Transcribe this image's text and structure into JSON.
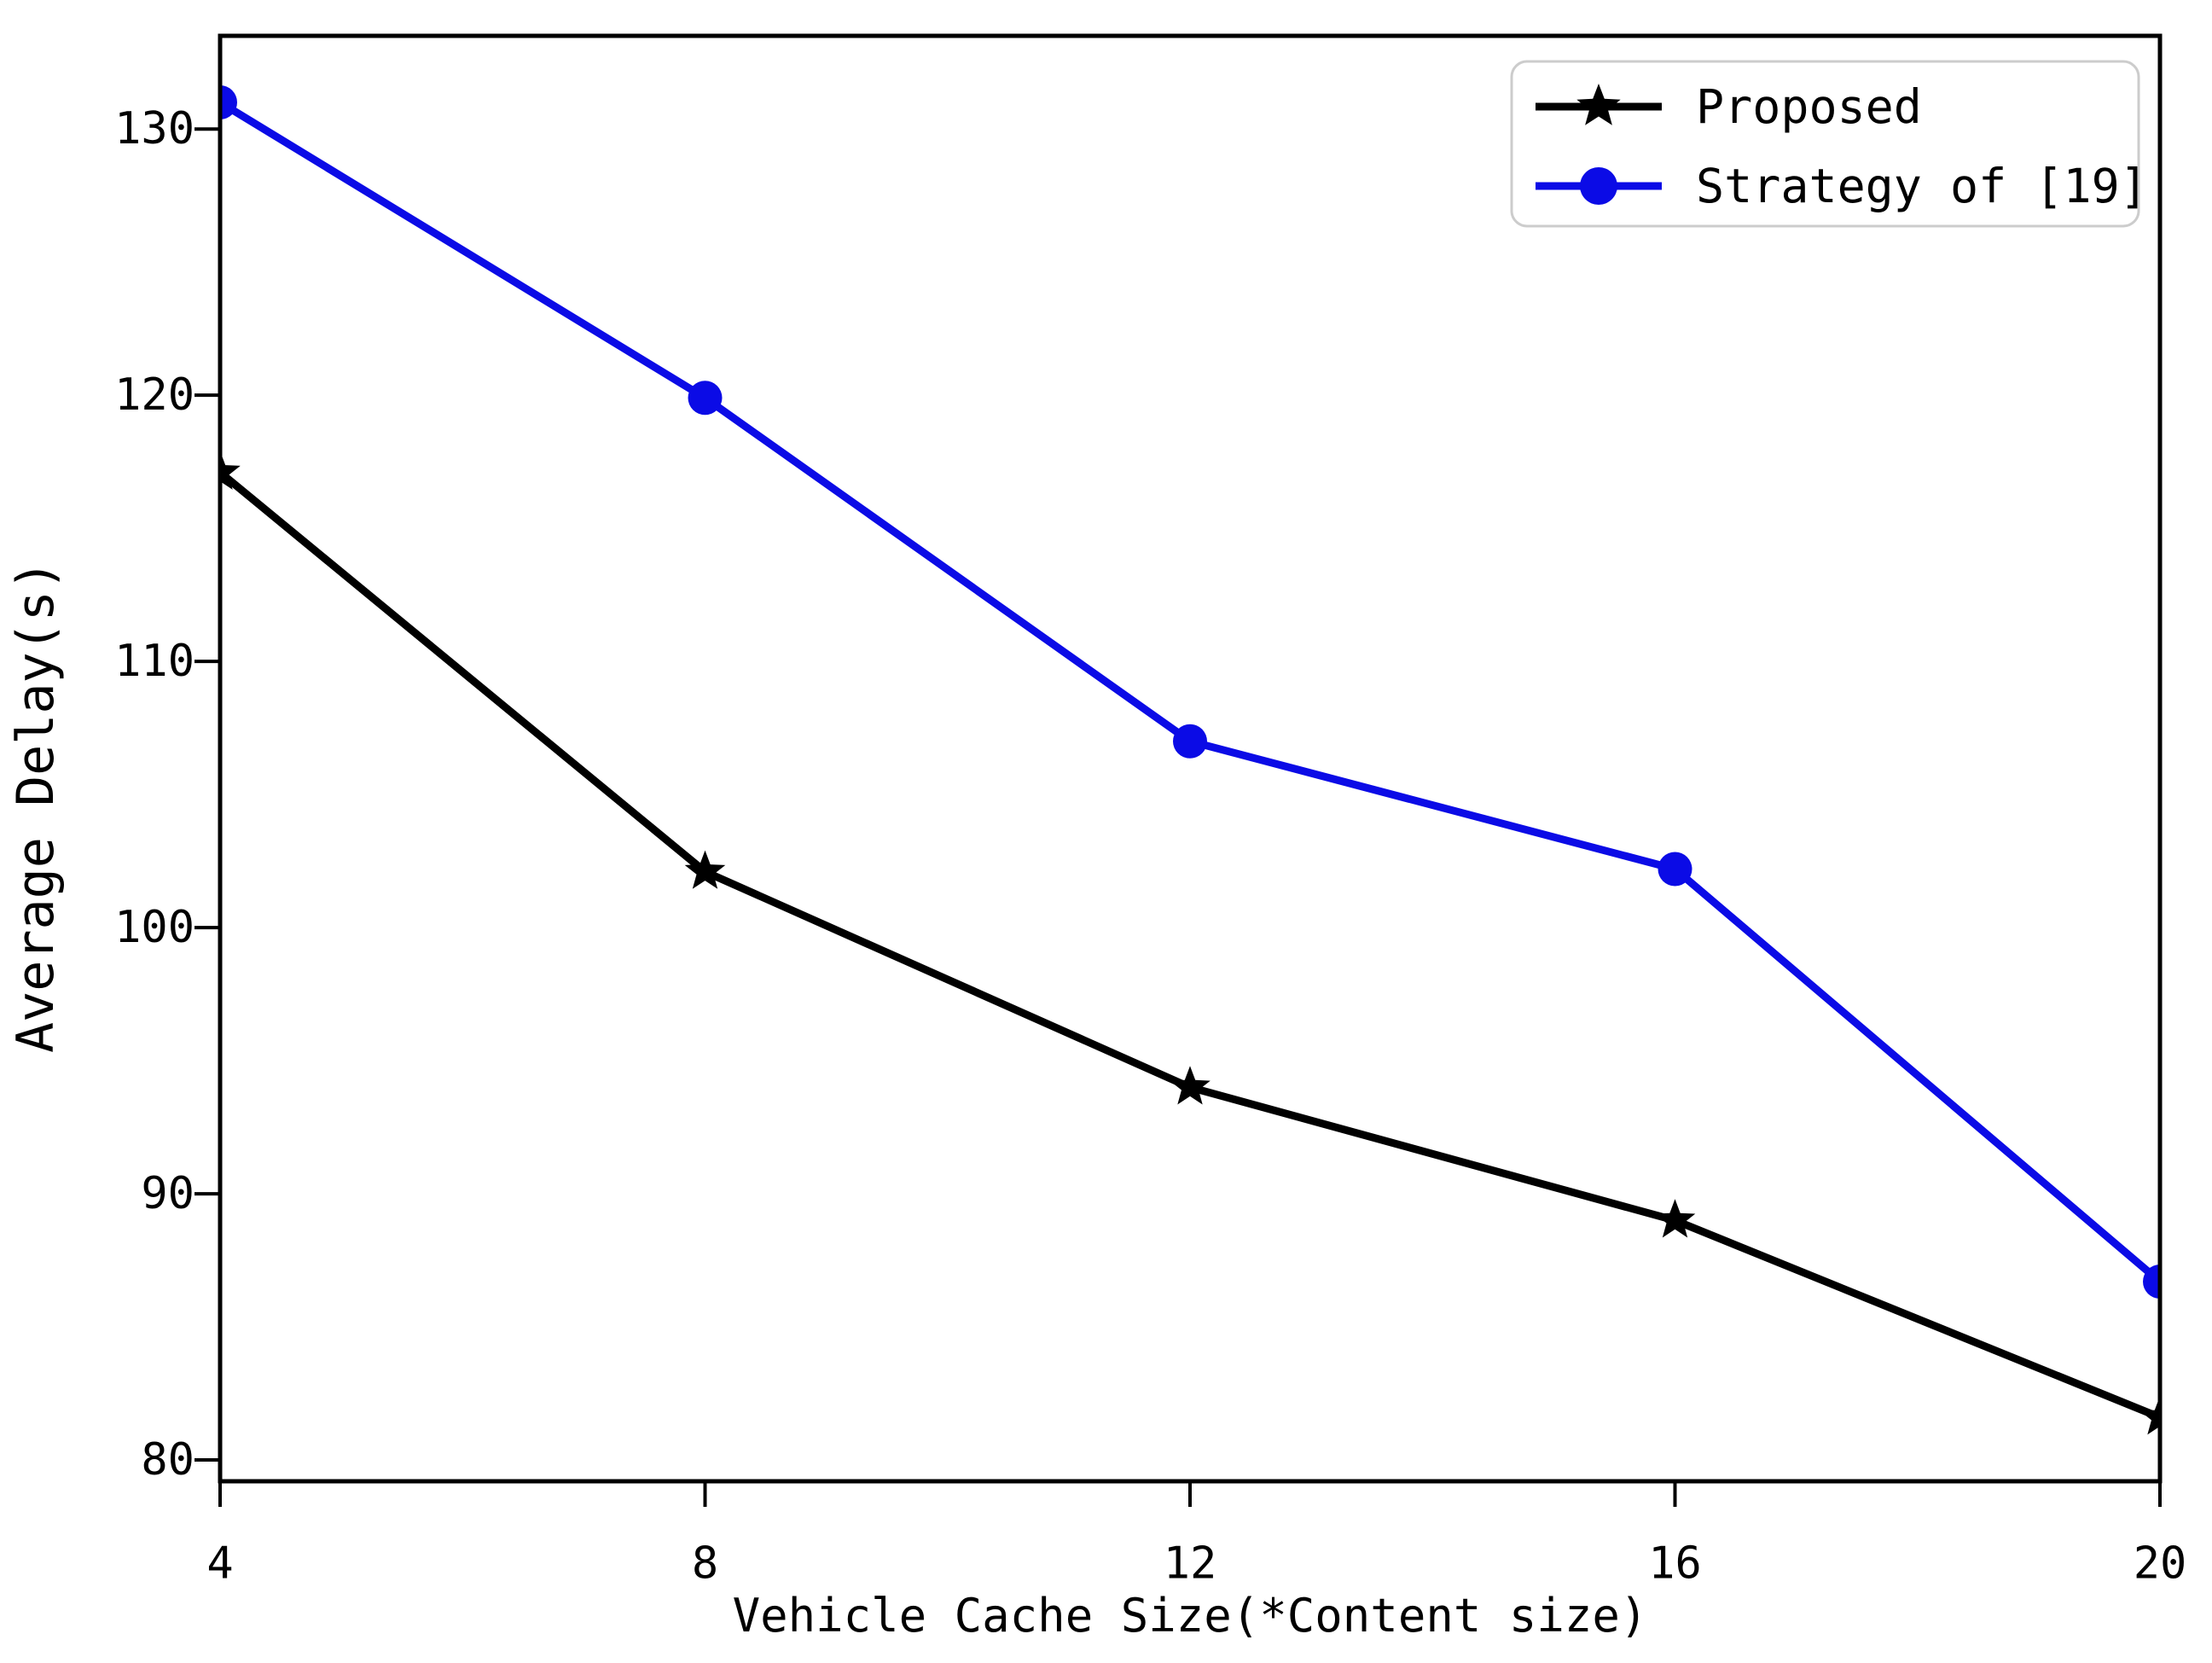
{
  "figure": {
    "background_color": "#ffffff",
    "axis_color": "#000000"
  },
  "chart_data": {
    "type": "line",
    "x": [
      4,
      8,
      12,
      16,
      20
    ],
    "series": [
      {
        "name": "Proposed",
        "color": "#000000",
        "marker": "star",
        "values": [
          117.1,
          102.1,
          94.0,
          89.0,
          81.6
        ]
      },
      {
        "name": "Strategy of [19]",
        "color": "#0b0be6",
        "marker": "circle",
        "values": [
          131.0,
          119.9,
          107.0,
          102.2,
          86.7
        ]
      }
    ],
    "title": "",
    "xlabel": "Vehicle Cache Size(*Content size)",
    "ylabel": "Average Delay(s)",
    "x_ticks": [
      "4",
      "8",
      "12",
      "16",
      "20"
    ],
    "y_ticks": [
      "80",
      "90",
      "100",
      "110",
      "120",
      "130"
    ],
    "x_tick_values": [
      4,
      8,
      12,
      16,
      20
    ],
    "y_tick_values": [
      80,
      90,
      100,
      110,
      120,
      130
    ],
    "xlim": [
      4,
      20
    ],
    "ylim": [
      79.2,
      133.5
    ],
    "grid": false,
    "legend": {
      "position": "upper-right",
      "border_color": "#cccccc",
      "background_color": "#ffffff"
    }
  }
}
